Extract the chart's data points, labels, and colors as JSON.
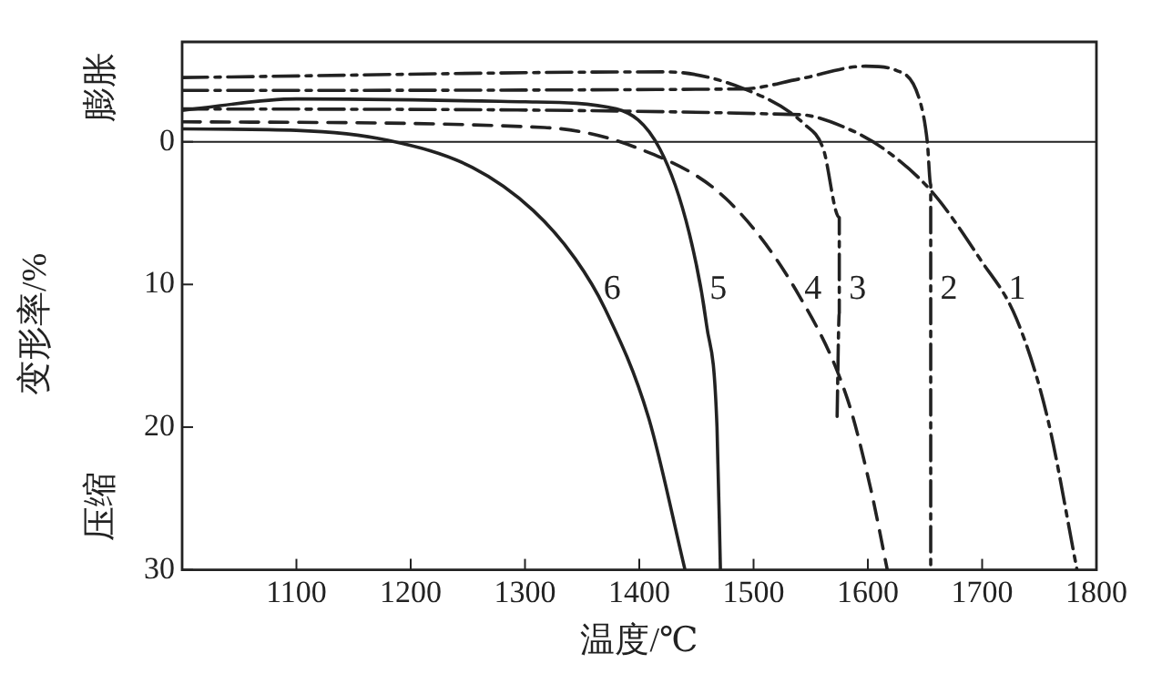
{
  "chart_data": {
    "type": "line",
    "xlabel": "温度/℃",
    "ylabel": "变形率/%",
    "xlim": [
      1000,
      1800
    ],
    "xticks": [
      1100,
      1200,
      1300,
      1400,
      1500,
      1600,
      1700,
      1800
    ],
    "ylim": [
      30,
      -7
    ],
    "yticks": [
      0,
      10,
      20,
      30
    ],
    "grid": false,
    "legend": false,
    "marker": "none",
    "ref_lines": [
      {
        "axis": "y",
        "value": 0,
        "color": "#222222"
      }
    ],
    "series": [
      {
        "name": "1",
        "color": "#222222",
        "line_style": "dashdot",
        "x": [
          1000,
          1540,
          1580,
          1614,
          1656,
          1698,
          1730,
          1757,
          1783
        ],
        "values": [
          -2.3,
          -1.9,
          -1.0,
          0.5,
          3.5,
          8.2,
          12.4,
          19.3,
          30
        ]
      },
      {
        "name": "2",
        "color": "#222222",
        "line_style": "dashdot",
        "x": [
          1000,
          1490,
          1540,
          1598,
          1625,
          1645,
          1652,
          1655,
          1655
        ],
        "values": [
          -3.6,
          -3.7,
          -4.4,
          -5.3,
          -5.0,
          -3.0,
          0,
          3,
          30
        ]
      },
      {
        "name": "3",
        "color": "#222222",
        "line_style": "dashdot",
        "x": [
          1000,
          1423,
          1492,
          1545,
          1561,
          1575,
          1575,
          1573
        ],
        "values": [
          -4.5,
          -4.9,
          -3.7,
          -1.2,
          0.5,
          5.3,
          12,
          19.7
        ]
      },
      {
        "name": "4",
        "color": "#222222",
        "line_style": "dashed",
        "x": [
          1000,
          1317,
          1397,
          1476,
          1540,
          1582,
          1603,
          1617
        ],
        "values": [
          -1.4,
          -1.0,
          0.4,
          4.0,
          10.8,
          18,
          24.5,
          30
        ]
      },
      {
        "name": "5",
        "color": "#222222",
        "line_style": "solid",
        "x": [
          1000,
          1100,
          1300,
          1380,
          1418,
          1444,
          1459,
          1468,
          1471
        ],
        "values": [
          -2.2,
          -3.0,
          -2.8,
          -2.3,
          0.5,
          6.5,
          12.9,
          20,
          30
        ]
      },
      {
        "name": "6",
        "color": "#222222",
        "line_style": "solid",
        "x": [
          1000,
          1100,
          1180,
          1254,
          1307,
          1344,
          1370,
          1408,
          1440
        ],
        "values": [
          -0.9,
          -0.8,
          -0.1,
          1.8,
          4.8,
          8.2,
          11.7,
          19.3,
          30
        ]
      }
    ],
    "annotations": [
      "膨胀",
      "压缩"
    ]
  }
}
